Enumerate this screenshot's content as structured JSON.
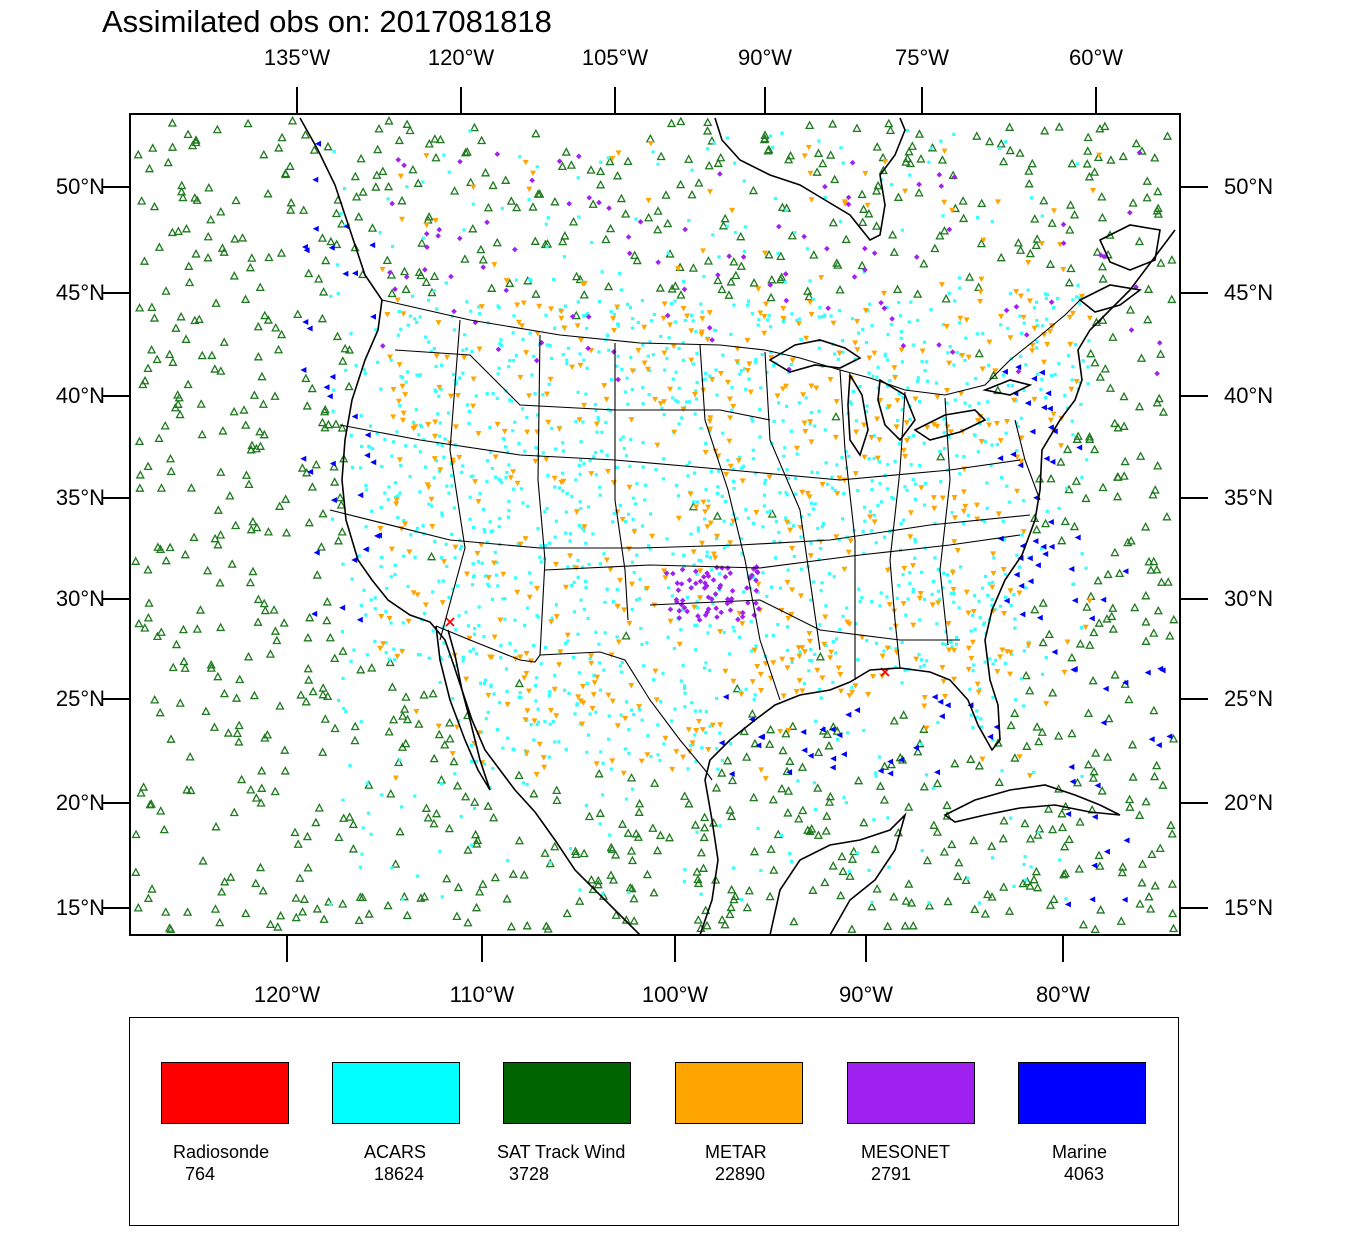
{
  "title": "Assimilated obs on: 2017081818",
  "top_lon_labels": [
    "135°W",
    "120°W",
    "105°W",
    "90°W",
    "75°W",
    "60°W"
  ],
  "bottom_lon_labels": [
    "120°W",
    "110°W",
    "100°W",
    "90°W",
    "80°W"
  ],
  "left_lat_labels": [
    "50°N",
    "45°N",
    "40°N",
    "35°N",
    "30°N",
    "25°N",
    "20°N",
    "15°N"
  ],
  "right_lat_labels": [
    "50°N",
    "45°N",
    "40°N",
    "35°N",
    "30°N",
    "25°N",
    "20°N",
    "15°N"
  ],
  "legend": [
    {
      "name": "Radiosonde",
      "count": "764",
      "color": "#ff0000"
    },
    {
      "name": "ACARS",
      "count": "18624",
      "color": "#00ffff"
    },
    {
      "name": "SAT Track Wind",
      "count": "3728",
      "color": "#006400"
    },
    {
      "name": "METAR",
      "count": "22890",
      "color": "#ffa500"
    },
    {
      "name": "MESONET",
      "count": "2791",
      "color": "#a020f0"
    },
    {
      "name": "Marine",
      "count": "4063",
      "color": "#0000ff"
    }
  ],
  "colors": {
    "sat_marker": "#1e7a1e",
    "acars": "#33ffff",
    "metar": "#ffa500",
    "mesonet": "#a020f0",
    "marine": "#0000ff",
    "radiosonde": "#ff0000",
    "coast": "#000000"
  }
}
